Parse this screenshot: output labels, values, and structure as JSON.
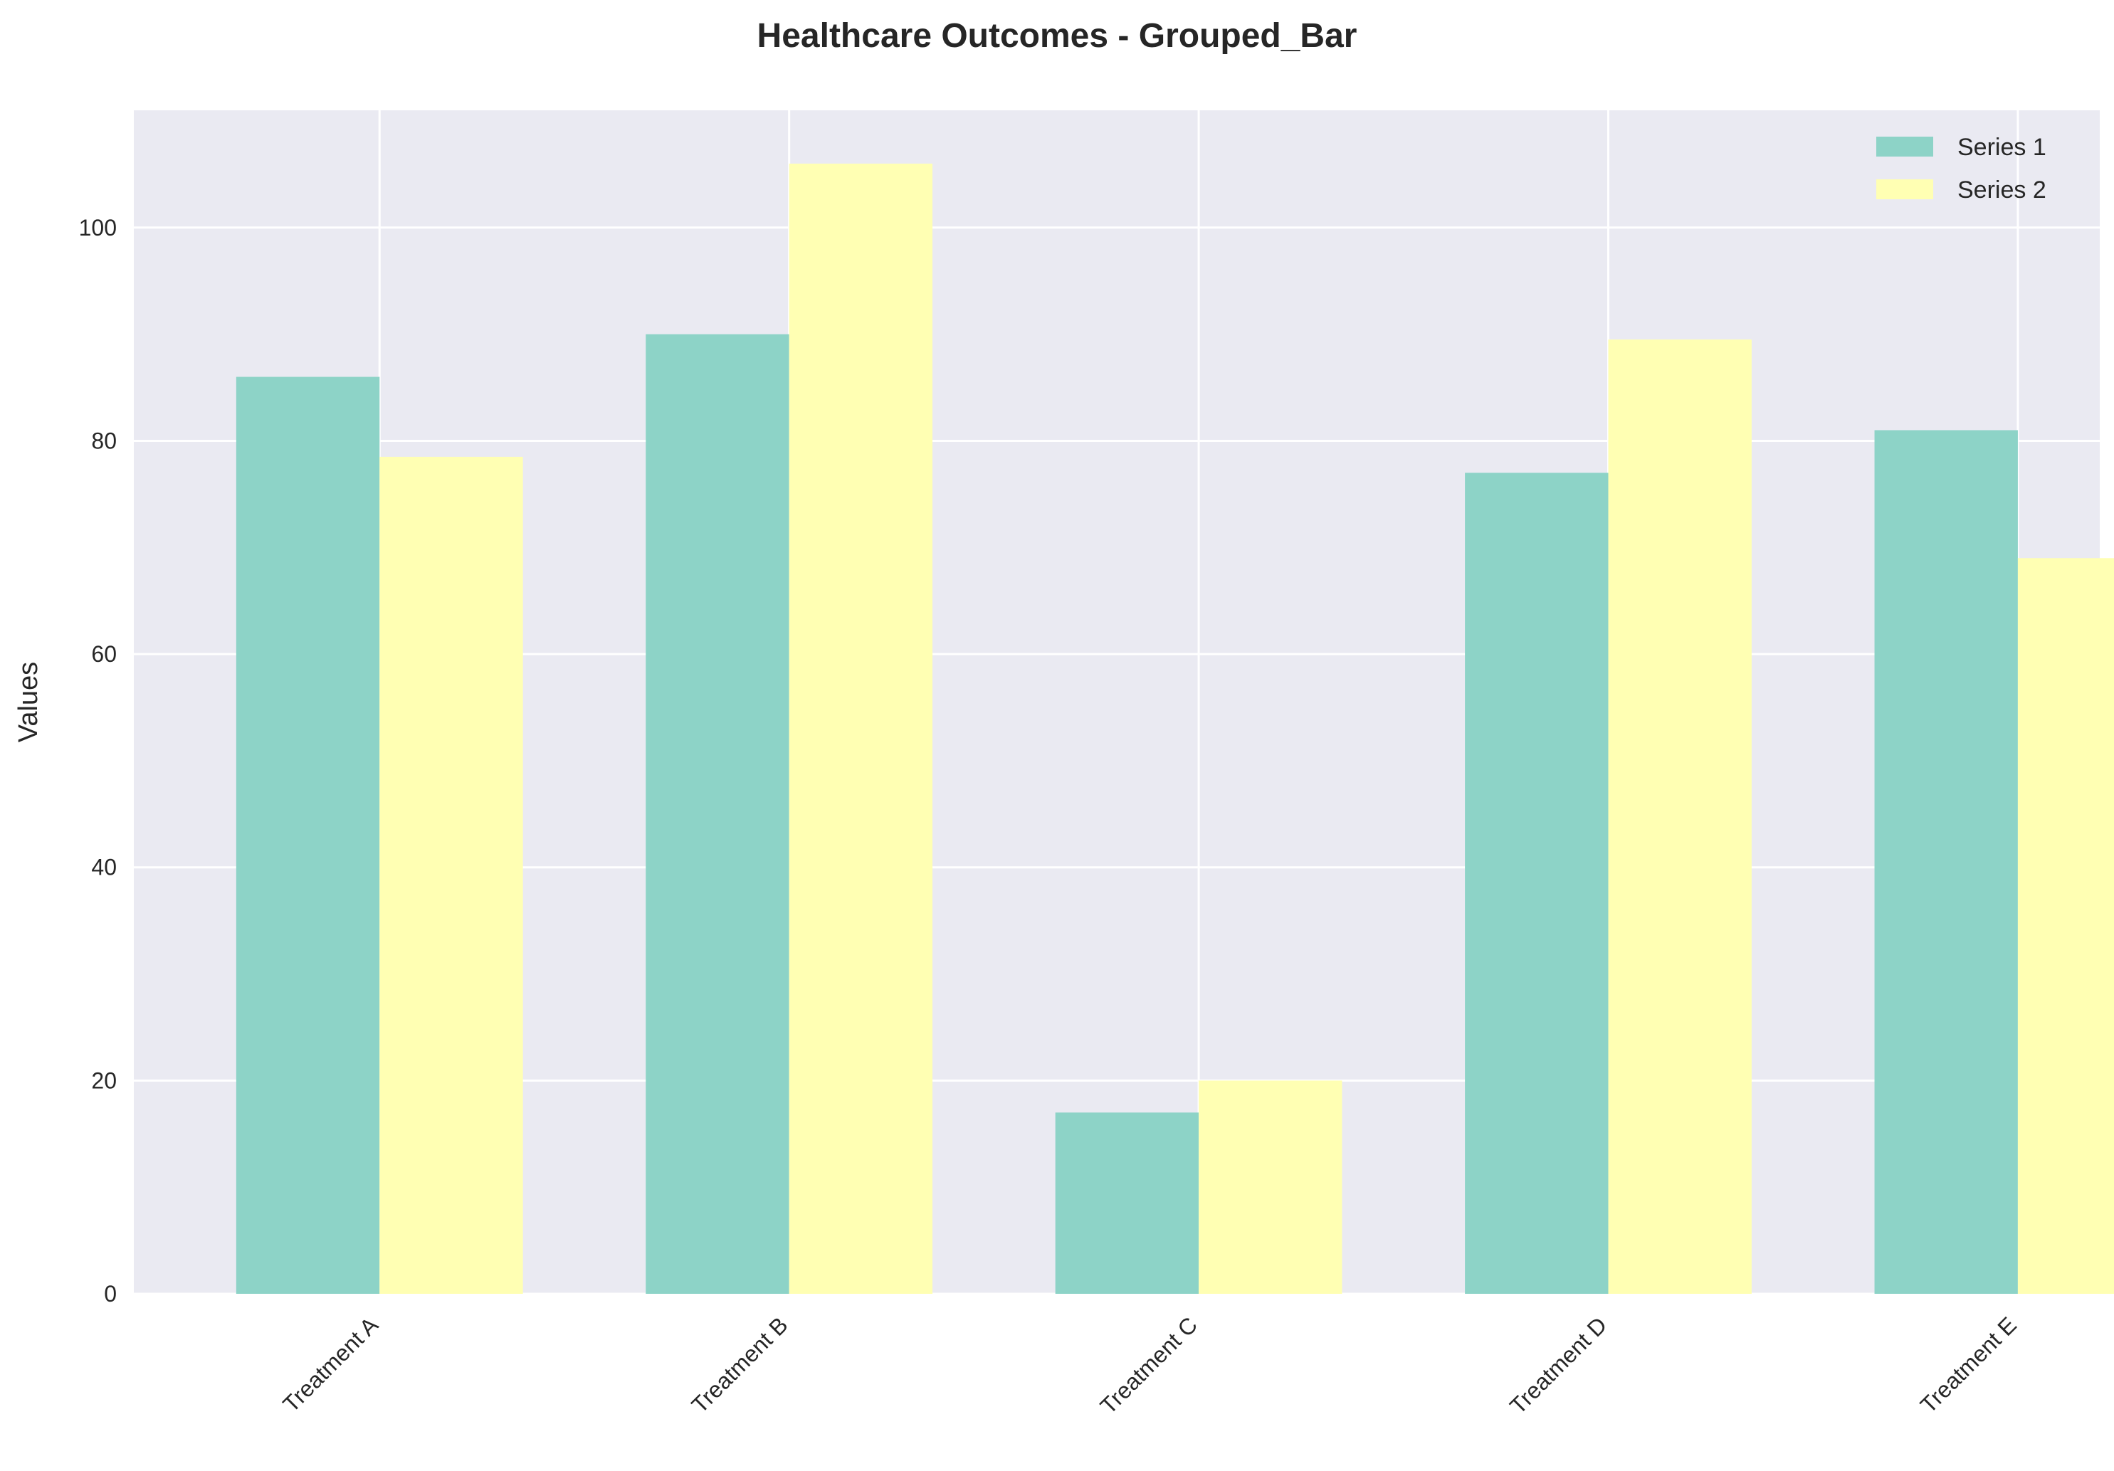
{
  "chart_data": {
    "type": "bar",
    "title": "Healthcare Outcomes - Grouped_Bar",
    "xlabel": "",
    "ylabel": "Values",
    "categories": [
      "Treatment A",
      "Treatment B",
      "Treatment C",
      "Treatment D",
      "Treatment E"
    ],
    "series": [
      {
        "name": "Series 1",
        "values": [
          86,
          90,
          17,
          77,
          81
        ],
        "color": "#8dd3c7"
      },
      {
        "name": "Series 2",
        "values": [
          78.5,
          106,
          20,
          89.5,
          69
        ],
        "color": "#ffffb3"
      }
    ],
    "ylim": [
      0,
      111
    ],
    "yticks": [
      0,
      20,
      40,
      60,
      80,
      100
    ],
    "grid": true,
    "legend": "top-right",
    "background": "#eaeaf2",
    "grid_color": "#ffffff"
  }
}
